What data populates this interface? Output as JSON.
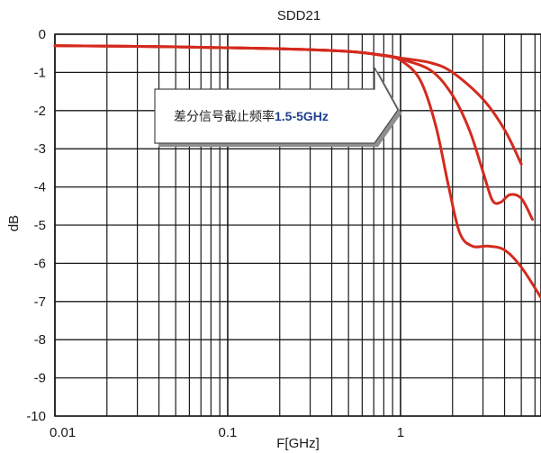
{
  "chart_data": {
    "type": "line",
    "title": "SDD21",
    "xlabel": "F[GHz]",
    "ylabel": "dB",
    "xscale": "log",
    "xlim": [
      0.01,
      6.5
    ],
    "ylim": [
      -10,
      0
    ],
    "grid": true,
    "x_tick_labels": [
      "0.01",
      "0.1",
      "1"
    ],
    "y_tick_labels": [
      "0",
      "-1",
      "-2",
      "-3",
      "-4",
      "-5",
      "-6",
      "-7",
      "-8",
      "-9",
      "-10"
    ],
    "line_color": "#d42a1e",
    "series": [
      {
        "x": [
          0.01,
          0.05,
          0.2,
          0.5,
          0.8,
          1.0,
          1.5,
          2.0,
          3.0,
          4.0,
          5.0
        ],
        "y": [
          -0.3,
          -0.33,
          -0.38,
          -0.45,
          -0.55,
          -0.62,
          -0.75,
          -1.0,
          -1.7,
          -2.5,
          -3.4
        ]
      },
      {
        "x": [
          0.01,
          0.05,
          0.2,
          0.5,
          0.8,
          1.0,
          1.5,
          2.0,
          2.5,
          3.0,
          3.4,
          3.8,
          4.3,
          5.0,
          5.8
        ],
        "y": [
          -0.3,
          -0.33,
          -0.38,
          -0.45,
          -0.56,
          -0.65,
          -0.95,
          -1.6,
          -2.5,
          -3.6,
          -4.35,
          -4.4,
          -4.2,
          -4.3,
          -4.85
        ]
      },
      {
        "x": [
          0.01,
          0.05,
          0.2,
          0.5,
          0.8,
          1.0,
          1.3,
          1.6,
          1.9,
          2.2,
          2.6,
          3.2,
          4.0,
          5.0,
          6.5
        ],
        "y": [
          -0.3,
          -0.33,
          -0.38,
          -0.45,
          -0.56,
          -0.68,
          -1.2,
          -2.4,
          -4.0,
          -5.2,
          -5.55,
          -5.55,
          -5.65,
          -6.1,
          -6.9
        ]
      }
    ],
    "annotation": {
      "text": "差分信号截止频率",
      "highlight": "1.5-5GHz"
    }
  }
}
